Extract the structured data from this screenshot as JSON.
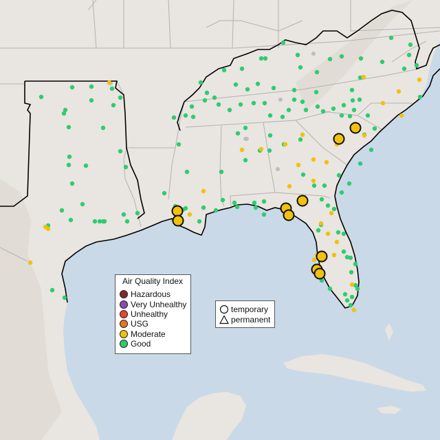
{
  "colors": {
    "ocean": "#c9d9e8",
    "land": "#e9e5e0",
    "land_relief": "#ddd8d1",
    "state_line": "#b3b3b3",
    "region_outline": "#000000",
    "lake": "#bdbdbd",
    "Hazardous": "#7e2a2a",
    "Very Unhealthy": "#8e4ab3",
    "Unhealthy": "#e8452e",
    "USG": "#e8751a",
    "Moderate": "#f2c10c",
    "Good": "#2ecc71"
  },
  "legend_aqi": {
    "title": "Air Quality Index",
    "items": [
      {
        "label": "Hazardous",
        "color": "#7e2a2a"
      },
      {
        "label": "Very Unhealthy",
        "color": "#8e4ab3"
      },
      {
        "label": "Unhealthy",
        "color": "#e8452e"
      },
      {
        "label": "USG",
        "color": "#e8751a"
      },
      {
        "label": "Moderate",
        "color": "#f2c10c"
      },
      {
        "label": "Good",
        "color": "#2ecc71"
      }
    ]
  },
  "legend_type": {
    "items": [
      {
        "label": "temporary",
        "icon": "circle-icon"
      },
      {
        "label": "permanent",
        "icon": "triangle-icon"
      }
    ]
  },
  "monitors": {
    "good_count_note": "",
    "categories": [
      "Good",
      "Moderate"
    ]
  }
}
